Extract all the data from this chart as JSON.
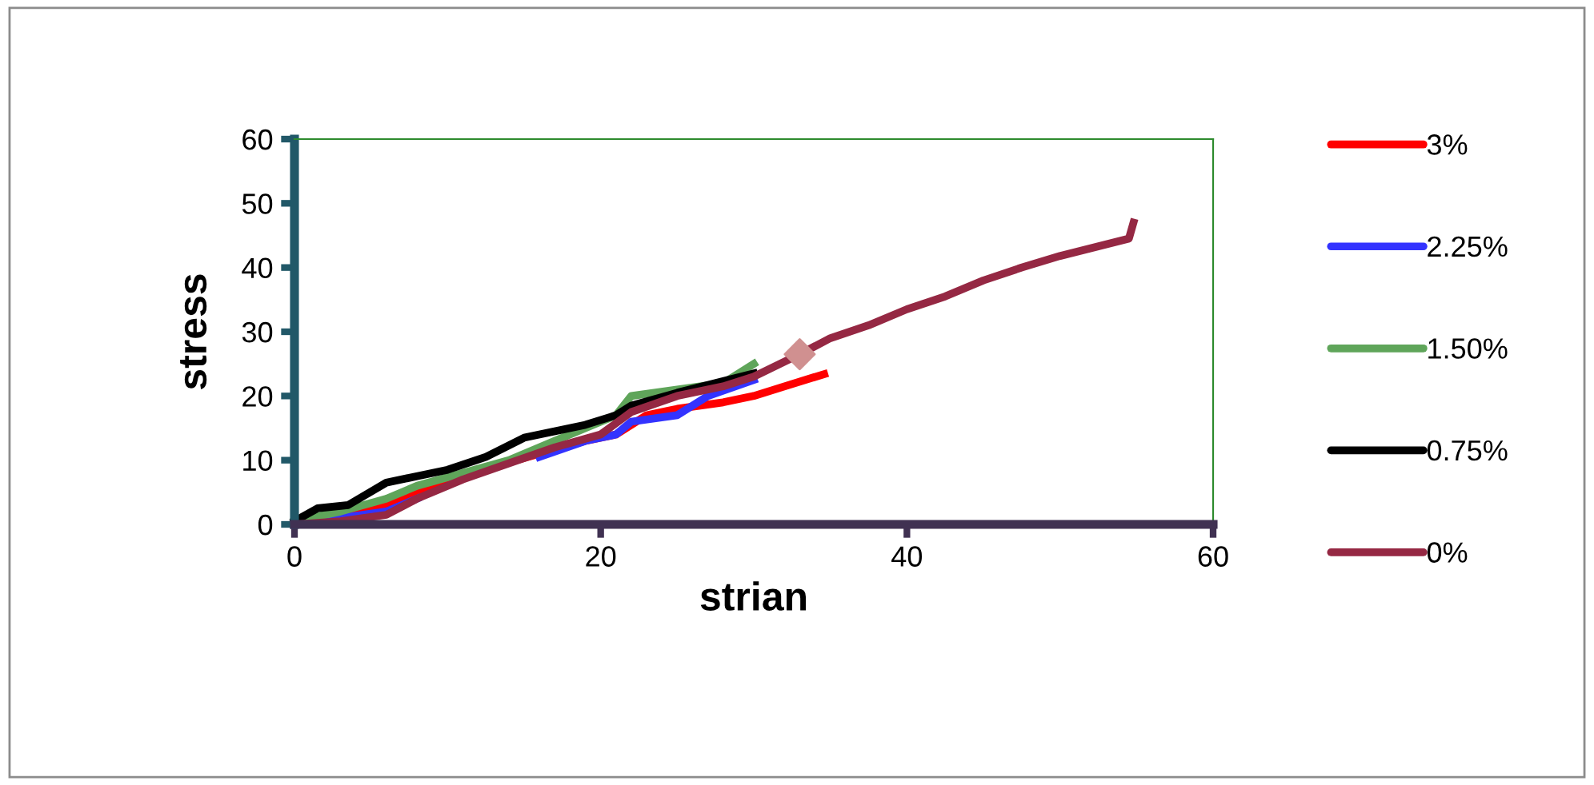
{
  "chart_data": {
    "type": "line",
    "xlabel": "strian",
    "ylabel": "stress",
    "xlim": [
      0,
      60
    ],
    "ylim": [
      0,
      60
    ],
    "xticks": [
      0,
      20,
      40,
      60
    ],
    "yticks": [
      0,
      10,
      20,
      30,
      40,
      50,
      60
    ],
    "grid": false,
    "legend": "right",
    "marker": "none",
    "line_style": "solid",
    "series": [
      {
        "name": "3%",
        "color": "#ff0000",
        "x": [
          0,
          2,
          4,
          6,
          8,
          10,
          13,
          16,
          19,
          21,
          23,
          25,
          28,
          30,
          32,
          34.6
        ],
        "values": [
          0,
          0.5,
          1.5,
          3,
          5,
          6.5,
          9,
          11,
          13,
          14,
          17,
          18,
          19,
          20,
          21.5,
          23.4
        ]
      },
      {
        "name": "2.25%",
        "color": "#3333ff",
        "x": [
          0,
          3,
          6,
          8,
          10,
          13,
          16,
          19,
          21,
          22,
          25,
          27,
          30
        ],
        "values": [
          0,
          1,
          2,
          4,
          null,
          null,
          10.5,
          13,
          14,
          16,
          17,
          20,
          22.5
        ]
      },
      {
        "name": "1.50%",
        "color": "#5fa55a",
        "x": [
          0,
          3,
          6,
          8,
          11,
          14,
          17,
          19,
          21,
          22,
          25,
          28,
          30
        ],
        "values": [
          0.5,
          2,
          4,
          6,
          8,
          10,
          13,
          15,
          17,
          20,
          21,
          22,
          25
        ]
      },
      {
        "name": "0.75%",
        "color": "#000000",
        "x": [
          0,
          1.5,
          3.5,
          6,
          8,
          10,
          12.5,
          15,
          17,
          19,
          21,
          22,
          25,
          30
        ],
        "values": [
          0.5,
          2.5,
          3,
          6.5,
          7.5,
          8.5,
          10.5,
          13.5,
          14.5,
          15.5,
          17,
          18.5,
          20.5,
          23.5
        ]
      },
      {
        "name": "0%",
        "color": "#952843",
        "x": [
          0,
          3,
          6,
          8,
          11,
          14,
          17,
          20,
          22,
          25,
          28,
          30,
          33,
          35,
          37.5,
          40,
          42.5,
          45,
          47.5,
          50,
          54.5,
          54.8
        ],
        "values": [
          0,
          0.5,
          1.5,
          4,
          7,
          9.5,
          12,
          14,
          17.5,
          20,
          21.5,
          23,
          26.5,
          29,
          31,
          33.5,
          35.5,
          38,
          40,
          41.8,
          44.5,
          47
        ]
      },
      {
        "type": "scatter",
        "marker": "diamond",
        "color": "#d09090",
        "x": [
          33
        ],
        "values": [
          26.5
        ]
      }
    ]
  }
}
